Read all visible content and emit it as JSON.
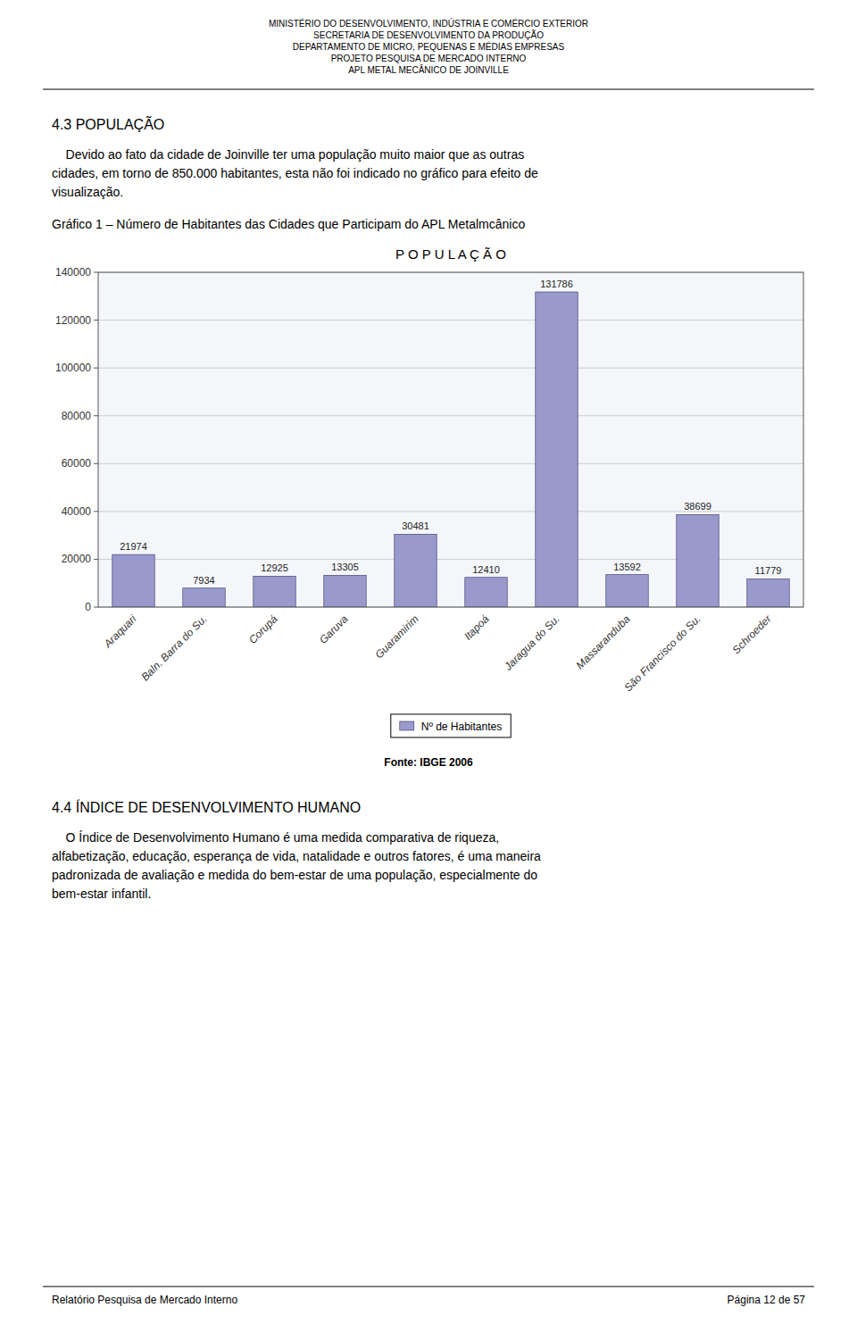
{
  "page": {
    "header_lines": [
      "MINISTÉRIO DO DESENVOLVIMENTO, INDÚSTRIA E COMÉRCIO EXTERIOR",
      "SECRETARIA DE DESENVOLVIMENTO DA PRODUÇÃO",
      "DEPARTAMENTO DE MICRO, PEQUENAS E MÉDIAS EMPRESAS",
      "PROJETO PESQUISA DE MERCADO INTERNO",
      "APL METAL MECÂNICO DE JOINVILLE"
    ],
    "section_43": "4.3 POPULAÇÃO",
    "body1": [
      "    Devido ao fato da cidade de Joinville ter uma população muito maior que as outras",
      "cidades, em torno de 850.000 habitantes, esta não foi indicado no gráfico para efeito de",
      "visualização."
    ],
    "grafico_caption": "Gráfico 1 – Número de Habitantes das Cidades que Participam do APL Metalmcânico",
    "fonte_text": "Fonte: IBGE 2006",
    "section_44": "4.4 ÍNDICE DE DESENVOLVIMENTO HUMANO",
    "body2": [
      "    O Índice de Desenvolvimento Humano é uma medida comparativa de riqueza,",
      "alfabetização, educação, esperança de vida, natalidade e outros fatores, é uma maneira",
      "padronizada de avaliação e medida do bem-estar de uma população, especialmente do",
      "bem-estar infantil."
    ],
    "footer_left": "Relatório Pesquisa de Mercado Interno",
    "footer_right": "Página 12 de 57"
  },
  "chart_data": {
    "type": "bar",
    "title": "P O P U L A Ç Ã O",
    "categories": [
      "Araquari",
      "Baln. Barra do Su.",
      "Corupá",
      "Garuva",
      "Guaramirim",
      "Itapoá",
      "Jaragua do Su.",
      "Massaranduba",
      "São Francisco do Su.",
      "Schroeder"
    ],
    "series": [
      {
        "name": "Nº de Habitantes",
        "color": "#9999cc",
        "values": [
          21974,
          7934,
          12925,
          13305,
          30481,
          12410,
          131786,
          13592,
          38699,
          11779
        ]
      }
    ],
    "ylim": [
      0,
      140000
    ],
    "yticks": [
      0,
      20000,
      40000,
      60000,
      80000,
      100000,
      120000,
      140000
    ],
    "grid": true,
    "legend": "bottom",
    "data_labels": true
  }
}
